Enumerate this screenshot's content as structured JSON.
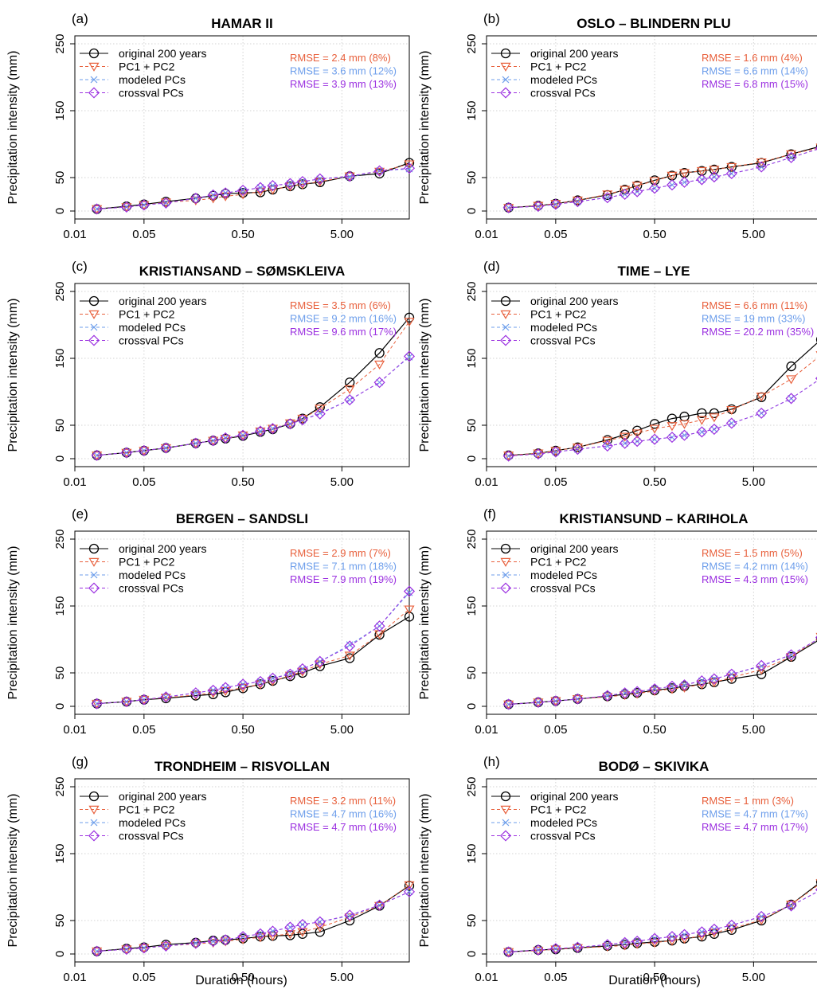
{
  "figure": {
    "ylabel": "Precipitation intensity (mm)",
    "xlabel": "Duration (hours)"
  },
  "legend": {
    "entries": [
      {
        "label": "original 200 years",
        "color": "#000000",
        "marker": "circle",
        "dash": "solid"
      },
      {
        "label": "PC1 + PC2",
        "color": "#e8603c",
        "marker": "triangle-down",
        "dash": "dashed"
      },
      {
        "label": "modeled PCs",
        "color": "#6d9eeb",
        "marker": "cross",
        "dash": "dashed"
      },
      {
        "label": "crossval PCs",
        "color": "#9b30e0",
        "marker": "diamond",
        "dash": "dashed"
      }
    ],
    "placement": "top-left"
  },
  "colors": {
    "original": "#000000",
    "pc12": "#e8603c",
    "modeled": "#6d9eeb",
    "crossval": "#9b30e0",
    "grid": "#d3d3d3"
  },
  "chart_data": {
    "type": "line",
    "x_scale": "log",
    "x_ticks": [
      0.01,
      0.05,
      0.5,
      5
    ],
    "x_tick_labels": [
      "0.01",
      "0.05",
      "0.50",
      "5.00"
    ],
    "xlim": [
      0.01,
      24
    ],
    "y_ticks": [
      0,
      50,
      150,
      250
    ],
    "ylim": [
      0,
      250
    ],
    "grid": true,
    "x": [
      0.0167,
      0.0333,
      0.05,
      0.0833,
      0.1667,
      0.25,
      0.333,
      0.5,
      0.75,
      1,
      1.5,
      2,
      3,
      6,
      12,
      24
    ],
    "panels": [
      {
        "label": "(a)",
        "title": "HAMAR II",
        "rmse": [
          "RMSE = 2.4 mm (8%)",
          "RMSE = 3.6 mm (12%)",
          "RMSE = 3.9 mm (13%)"
        ],
        "series": {
          "original": [
            3,
            7,
            10,
            14,
            19,
            23,
            26,
            27,
            28,
            32,
            37,
            40,
            43,
            52,
            56,
            72
          ],
          "pc12": [
            3,
            6,
            9,
            13,
            16,
            19,
            22,
            25,
            29,
            32,
            37,
            40,
            44,
            52,
            59,
            70
          ],
          "modeled": [
            3,
            6,
            9,
            12,
            19,
            24,
            27,
            31,
            35,
            38,
            41,
            44,
            48,
            51,
            60,
            63
          ],
          "crossval": [
            3,
            6,
            9,
            12,
            19,
            24,
            27,
            31,
            35,
            38,
            41,
            44,
            48,
            52,
            60,
            64
          ]
        }
      },
      {
        "label": "(b)",
        "title": "OSLO – BLINDERN PLU",
        "rmse": [
          "RMSE = 1.6 mm (4%)",
          "RMSE = 6.6 mm (14%)",
          "RMSE = 6.8 mm (15%)"
        ],
        "series": {
          "original": [
            5,
            8,
            11,
            16,
            24,
            32,
            38,
            46,
            53,
            57,
            60,
            62,
            66,
            72,
            85,
            97
          ],
          "pc12": [
            5,
            8,
            11,
            16,
            25,
            32,
            38,
            45,
            53,
            57,
            60,
            62,
            66,
            73,
            85,
            95
          ],
          "modeled": [
            5,
            7,
            10,
            14,
            20,
            25,
            29,
            34,
            39,
            43,
            47,
            51,
            56,
            66,
            80,
            94
          ],
          "crossval": [
            5,
            7,
            10,
            14,
            20,
            25,
            29,
            34,
            39,
            43,
            47,
            51,
            56,
            66,
            80,
            94
          ]
        }
      },
      {
        "label": "(c)",
        "title": "KRISTIANSAND – SØMSKLEIVA",
        "rmse": [
          "RMSE = 3.5 mm (6%)",
          "RMSE = 9.2 mm (16%)",
          "RMSE = 9.6 mm (17%)"
        ],
        "series": {
          "original": [
            5,
            9,
            12,
            16,
            23,
            27,
            30,
            34,
            40,
            44,
            52,
            60,
            77,
            114,
            158,
            211
          ],
          "pc12": [
            5,
            9,
            12,
            16,
            23,
            27,
            30,
            35,
            41,
            45,
            53,
            60,
            75,
            104,
            141,
            205
          ],
          "modeled": [
            5,
            9,
            12,
            16,
            23,
            27,
            31,
            35,
            41,
            45,
            52,
            58,
            68,
            88,
            114,
            152
          ],
          "crossval": [
            5,
            9,
            12,
            16,
            23,
            27,
            31,
            35,
            41,
            45,
            52,
            58,
            67,
            88,
            114,
            153
          ]
        }
      },
      {
        "label": "(d)",
        "title": "TIME – LYE",
        "rmse": [
          "RMSE = 6.6 mm (11%)",
          "RMSE = 19 mm (33%)",
          "RMSE = 20.2 mm (35%)"
        ],
        "series": {
          "original": [
            5,
            8,
            12,
            17,
            28,
            36,
            42,
            52,
            60,
            63,
            68,
            68,
            74,
            92,
            138,
            178
          ],
          "pc12": [
            5,
            8,
            12,
            17,
            27,
            33,
            38,
            45,
            49,
            52,
            58,
            62,
            73,
            93,
            119,
            155
          ],
          "modeled": [
            4,
            7,
            10,
            14,
            19,
            23,
            26,
            29,
            32,
            35,
            40,
            44,
            53,
            68,
            90,
            120
          ],
          "crossval": [
            4,
            7,
            10,
            14,
            19,
            23,
            26,
            29,
            32,
            35,
            40,
            44,
            53,
            68,
            90,
            120
          ]
        }
      },
      {
        "label": "(e)",
        "title": "BERGEN – SANDSLI",
        "rmse": [
          "RMSE = 2.9 mm (7%)",
          "RMSE = 7.1 mm (18%)",
          "RMSE = 7.9 mm (19%)"
        ],
        "series": {
          "original": [
            4,
            7,
            10,
            12,
            16,
            18,
            21,
            27,
            33,
            38,
            45,
            50,
            60,
            72,
            107,
            134
          ],
          "pc12": [
            4,
            7,
            10,
            13,
            17,
            20,
            23,
            28,
            33,
            38,
            46,
            52,
            63,
            76,
            108,
            145
          ],
          "modeled": [
            4,
            7,
            10,
            14,
            20,
            24,
            28,
            33,
            37,
            42,
            49,
            56,
            67,
            92,
            120,
            170
          ],
          "crossval": [
            4,
            7,
            10,
            14,
            20,
            24,
            28,
            33,
            37,
            42,
            48,
            56,
            67,
            90,
            120,
            172
          ]
        }
      },
      {
        "label": "(f)",
        "title": "KRISTIANSUND – KARIHOLA",
        "rmse": [
          "RMSE = 1.5 mm (5%)",
          "RMSE = 4.2 mm (14%)",
          "RMSE = 4.3 mm (15%)"
        ],
        "series": {
          "original": [
            3,
            6,
            8,
            11,
            15,
            18,
            20,
            24,
            27,
            30,
            33,
            36,
            41,
            48,
            74,
            101
          ],
          "pc12": [
            3,
            6,
            8,
            11,
            14,
            17,
            19,
            23,
            26,
            28,
            33,
            36,
            43,
            55,
            74,
            104
          ],
          "modeled": [
            3,
            6,
            8,
            11,
            16,
            20,
            22,
            26,
            30,
            32,
            38,
            41,
            48,
            60,
            77,
            103
          ],
          "crossval": [
            3,
            6,
            8,
            11,
            16,
            20,
            22,
            26,
            30,
            32,
            38,
            41,
            48,
            61,
            77,
            103
          ]
        }
      },
      {
        "label": "(g)",
        "title": "TRONDHEIM – RISVOLLAN",
        "rmse": [
          "RMSE = 3.2 mm (11%)",
          "RMSE = 4.7 mm (16%)",
          "RMSE = 4.7 mm (16%)"
        ],
        "series": {
          "original": [
            4,
            8,
            10,
            14,
            17,
            20,
            21,
            23,
            26,
            27,
            28,
            30,
            33,
            50,
            72,
            102
          ],
          "pc12": [
            4,
            7,
            9,
            12,
            15,
            17,
            19,
            22,
            25,
            27,
            30,
            33,
            40,
            55,
            72,
            103
          ],
          "modeled": [
            4,
            7,
            9,
            12,
            16,
            19,
            21,
            26,
            30,
            34,
            40,
            44,
            48,
            57,
            73,
            93
          ],
          "crossval": [
            4,
            7,
            9,
            12,
            16,
            19,
            21,
            26,
            30,
            34,
            40,
            44,
            48,
            58,
            73,
            93
          ]
        }
      },
      {
        "label": "(h)",
        "title": "BODØ – SKIVIKA",
        "rmse": [
          "RMSE = 1 mm (3%)",
          "RMSE = 4.7 mm (17%)",
          "RMSE = 4.7 mm (17%)"
        ],
        "series": {
          "original": [
            3,
            6,
            7,
            9,
            12,
            14,
            16,
            18,
            20,
            23,
            26,
            30,
            36,
            50,
            74,
            108
          ],
          "pc12": [
            3,
            5,
            7,
            9,
            11,
            13,
            15,
            17,
            20,
            23,
            27,
            32,
            38,
            51,
            74,
            106
          ],
          "modeled": [
            3,
            6,
            8,
            10,
            14,
            17,
            19,
            23,
            26,
            29,
            33,
            37,
            43,
            56,
            72,
            96
          ],
          "crossval": [
            3,
            6,
            8,
            10,
            14,
            17,
            19,
            23,
            26,
            29,
            33,
            37,
            43,
            56,
            72,
            96
          ]
        }
      }
    ]
  }
}
